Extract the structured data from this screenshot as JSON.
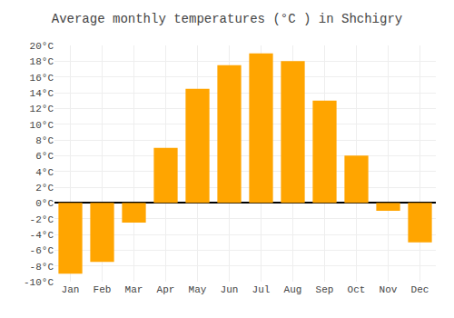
{
  "chart_data": {
    "type": "bar",
    "title": "Average monthly temperatures (°C ) in Shchigry",
    "categories": [
      "Jan",
      "Feb",
      "Mar",
      "Apr",
      "May",
      "Jun",
      "Jul",
      "Aug",
      "Sep",
      "Oct",
      "Nov",
      "Dec"
    ],
    "values": [
      -9,
      -7.5,
      -2.5,
      7,
      14.5,
      17.5,
      19,
      18,
      13,
      6,
      -1,
      -5
    ],
    "color": "#FFA500",
    "ylim": [
      -10,
      20
    ],
    "yticks": [
      {
        "value": -10,
        "label": "-10°C"
      },
      {
        "value": -8,
        "label": "-8°C"
      },
      {
        "value": -6,
        "label": "-6°C"
      },
      {
        "value": -4,
        "label": "-4°C"
      },
      {
        "value": -2,
        "label": "-2°C"
      },
      {
        "value": 0,
        "label": "0°C"
      },
      {
        "value": 2,
        "label": "2°C"
      },
      {
        "value": 4,
        "label": "4°C"
      },
      {
        "value": 6,
        "label": "6°C"
      },
      {
        "value": 8,
        "label": "8°C"
      },
      {
        "value": 10,
        "label": "10°C"
      },
      {
        "value": 12,
        "label": "12°C"
      },
      {
        "value": 14,
        "label": "14°C"
      },
      {
        "value": 16,
        "label": "16°C"
      },
      {
        "value": 18,
        "label": "18°C"
      },
      {
        "value": 20,
        "label": "20°C"
      }
    ],
    "grid": true
  }
}
